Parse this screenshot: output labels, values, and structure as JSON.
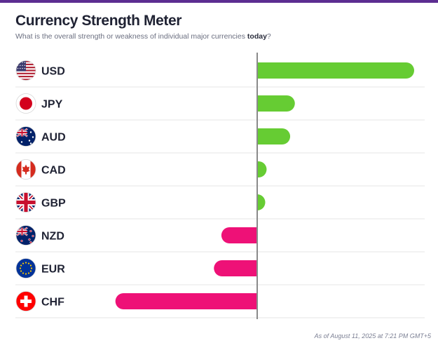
{
  "header": {
    "title": "Currency Strength Meter",
    "subtitle_prefix": "What is the overall strength or weakness of individual major currencies ",
    "subtitle_emphasis": "today",
    "subtitle_suffix": "?"
  },
  "footer": {
    "timestamp": "As of August 11, 2025 at 7:21 PM GMT+5"
  },
  "colors": {
    "positive": "#66cc33",
    "negative": "#ee1177",
    "axis": "#8a8a8a",
    "row_divider": "#e6e6e6",
    "brand": "#5c2d91"
  },
  "chart_data": {
    "type": "bar",
    "orientation": "horizontal",
    "categories": [
      "USD",
      "JPY",
      "AUD",
      "CAD",
      "GBP",
      "NZD",
      "EUR",
      "CHF"
    ],
    "values": [
      100,
      24,
      21,
      6,
      5,
      -24,
      -29,
      -95
    ],
    "flags": [
      "us-flag-icon",
      "jp-flag-icon",
      "au-flag-icon",
      "ca-flag-icon",
      "gb-flag-icon",
      "nz-flag-icon",
      "eu-flag-icon",
      "ch-flag-icon"
    ],
    "xlim": [
      -100,
      100
    ]
  }
}
